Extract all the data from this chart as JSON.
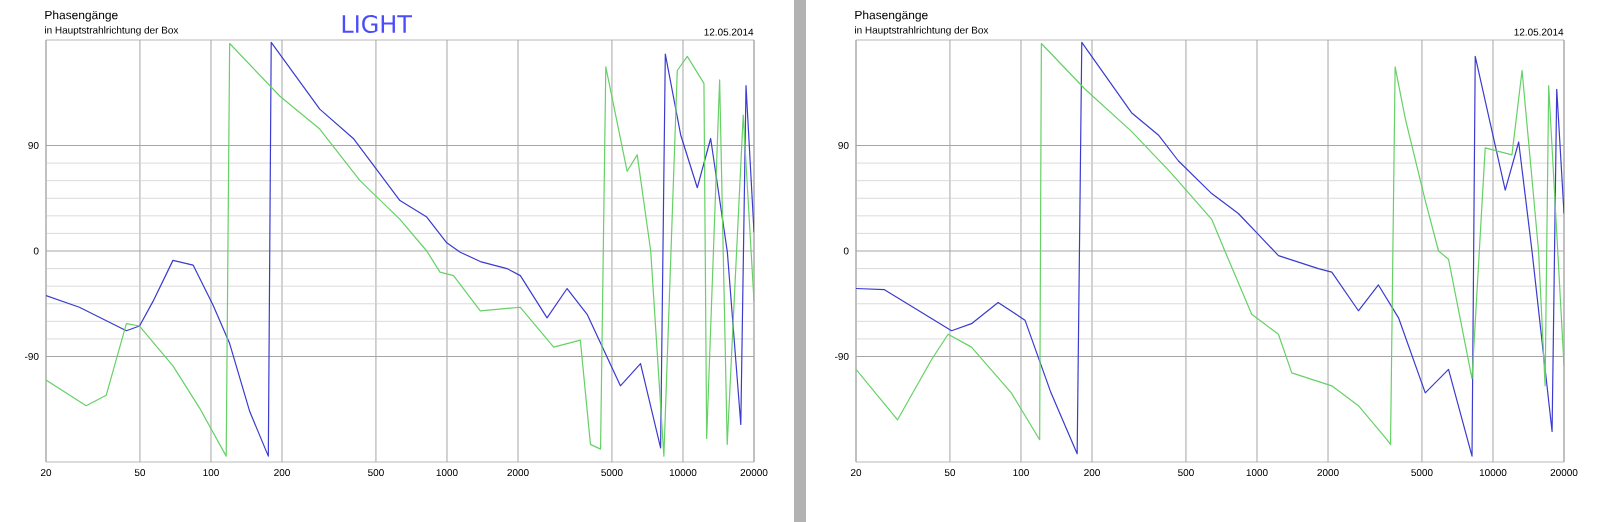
{
  "chart_data": [
    {
      "type": "line",
      "title": "Phasengänge",
      "subtitle": "in Hauptstrahlrichtung der Box",
      "annotations": [
        "12.05.2014",
        "LIGHT"
      ],
      "log": "x",
      "grid": true,
      "xlim": [
        20,
        20000
      ],
      "ylim": [
        -180,
        180
      ],
      "xticks": [
        20,
        50,
        100,
        200,
        500,
        1000,
        2000,
        5000,
        10000,
        20000
      ],
      "yticks": [
        -90,
        0,
        90
      ],
      "series": [
        {
          "color": "#3b3bd0",
          "x": [
            20,
            27.7,
            43.8,
            49.8,
            56.8,
            69,
            84,
            102,
            120,
            146,
            175,
            180,
            289,
            401,
            632,
            821,
            998,
            1138,
            1384,
            1796,
            2046,
            2655,
            3228,
            3926,
            5431,
            6610,
            8038,
            8417,
            9780,
            11500,
            13100,
            15420,
            17580,
            18500,
            20000
          ],
          "values": [
            -38,
            -48,
            -68,
            -64,
            -43,
            -8,
            -12,
            -46,
            -79,
            -137,
            -175,
            178,
            121,
            96,
            43,
            29,
            7,
            -1,
            -9,
            -15,
            -21,
            -57,
            -32,
            -54,
            -115,
            -96,
            -168,
            168,
            99,
            54,
            96,
            -1,
            -148,
            141,
            16
          ]
        },
        {
          "color": "#66d166",
          "x": [
            20,
            29.6,
            36,
            43.8,
            49.8,
            69,
            89.5,
            116,
            120,
            196,
            289,
            428,
            632,
            821,
            934,
            1066,
            1384,
            2046,
            2832,
            3674,
            4054,
            4475,
            4710,
            5800,
            6400,
            7300,
            8300,
            9460,
            10430,
            12270,
            12600,
            14300,
            15400,
            18000,
            20000
          ],
          "values": [
            -110,
            -132,
            -123,
            -62,
            -64,
            -98,
            -134,
            -175,
            177,
            132,
            104,
            60,
            27,
            0,
            -18,
            -21,
            -51,
            -48,
            -82,
            -76,
            -165,
            -169,
            157,
            68,
            82,
            0,
            -175,
            154,
            166,
            143,
            -160,
            146,
            -165,
            116,
            -43
          ]
        }
      ]
    },
    {
      "type": "line",
      "title": "Phasengänge",
      "subtitle": "in Hauptstrahlrichtung der Box",
      "annotations": [
        "12.05.2014"
      ],
      "log": "x",
      "grid": true,
      "xlim": [
        20,
        20000
      ],
      "ylim": [
        -180,
        180
      ],
      "xticks": [
        20,
        50,
        100,
        200,
        500,
        1000,
        2000,
        5000,
        10000,
        20000
      ],
      "yticks": [
        -90,
        0,
        90
      ],
      "series": [
        {
          "color": "#3b3bd0",
          "x": [
            20,
            26.4,
            50.8,
            61.7,
            80,
            104,
            134,
            173,
            181,
            294,
            382,
            464,
            643,
            834,
            1015,
            1233,
            1820,
            2075,
            2690,
            3270,
            3980,
            5165,
            6480,
            8150,
            8410,
            11270,
            12850,
            14630,
            17800,
            18630,
            20000
          ],
          "values": [
            -32,
            -33,
            -68,
            -62,
            -44,
            -59,
            -121,
            -173,
            178,
            118,
            99,
            77,
            49,
            32,
            14,
            -4,
            -15,
            -18,
            -51,
            -29,
            -57,
            -121,
            -101,
            -175,
            166,
            52,
            93,
            0,
            -154,
            138,
            32
          ]
        },
        {
          "color": "#66d166",
          "x": [
            20,
            30,
            41.7,
            49.1,
            61.7,
            91,
            120,
            122,
            187,
            294,
            435,
            643,
            731,
            950,
            1233,
            1404,
            2075,
            2690,
            3490,
            3680,
            3850,
            4250,
            5165,
            5880,
            6480,
            8150,
            9270,
            12030,
            13280,
            15600,
            16630,
            17220,
            20000
          ],
          "values": [
            -101,
            -144,
            -93,
            -71,
            -82,
            -121,
            -161,
            177,
            138,
            102,
            66,
            27,
            0,
            -54,
            -71,
            -104,
            -115,
            -132,
            -159,
            -165,
            157,
            113,
            43,
            0,
            -7,
            -109,
            88,
            82,
            154,
            0,
            -115,
            141,
            -98
          ]
        }
      ]
    }
  ]
}
